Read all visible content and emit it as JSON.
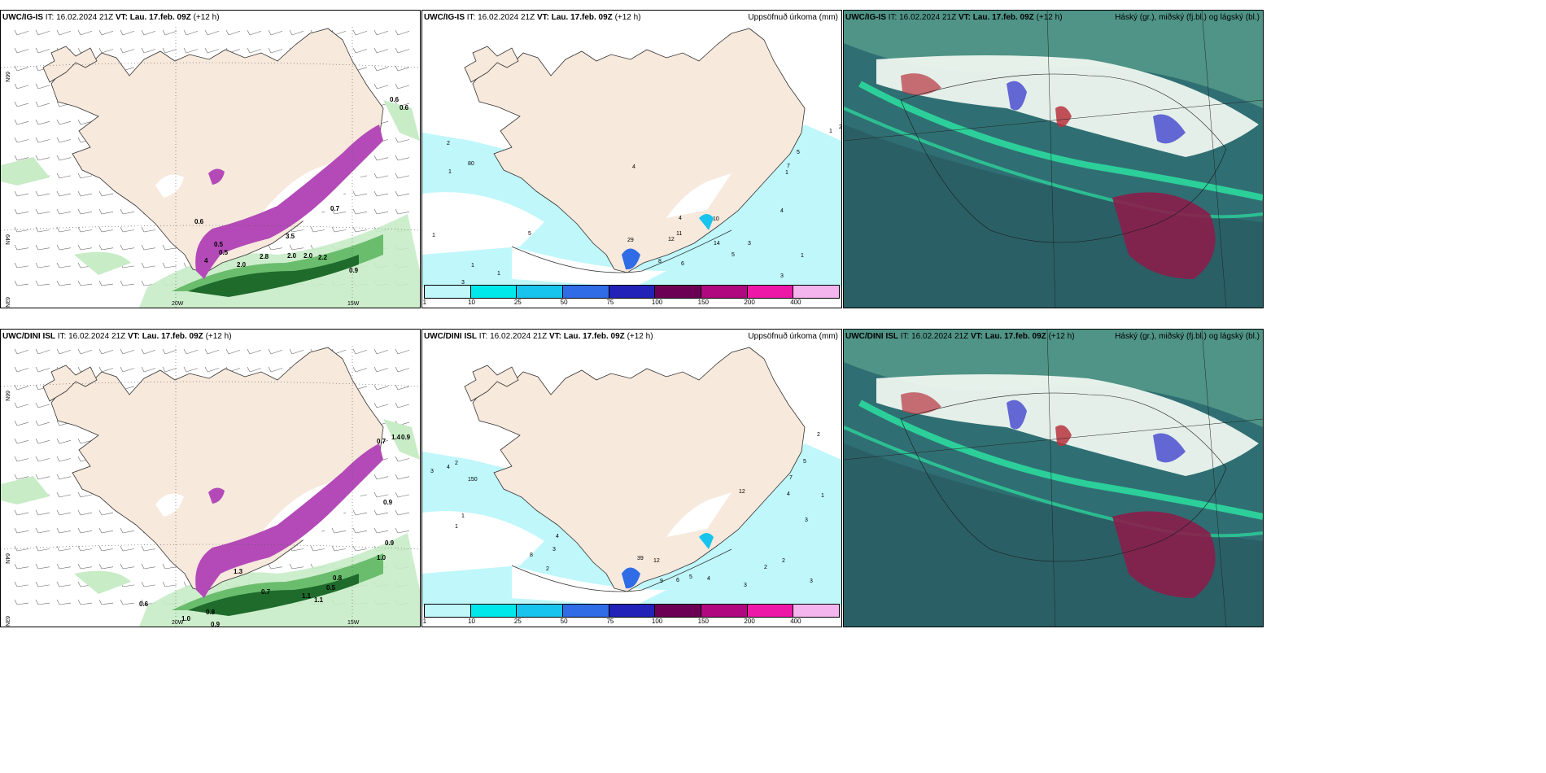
{
  "panels": [
    {
      "id": "p1",
      "type": "wind-precip",
      "model": "UWC/IG-IS",
      "it": "IT: 16.02.2024 21Z",
      "vt_label": "VT:",
      "vt": "Lau. 17.feb. 09Z",
      "lead": "(+12 h)",
      "lat_labels": [
        "66N",
        "64N",
        "63N"
      ],
      "lon_labels": [
        "20W",
        "15W"
      ],
      "precip_values": [
        "0.6",
        "0.6",
        "0.6",
        "0.7",
        "0.9",
        "2.0",
        "2.8",
        "2.0",
        "2.0",
        "2.2",
        "0.5",
        "3.5",
        "4",
        "0.5"
      ]
    },
    {
      "id": "p2",
      "type": "accum-precip",
      "model": "UWC/IG-IS",
      "it": "IT: 16.02.2024 21Z",
      "vt_label": "VT:",
      "vt": "Lau. 17.feb. 09Z",
      "lead": "(+12 h)",
      "title_right": "Uppsöfnuð úrkoma (mm)",
      "accum_values": [
        "2",
        "1",
        "80",
        "5",
        "4",
        "11",
        "12",
        "4",
        "10",
        "14",
        "8",
        "3",
        "5",
        "1",
        "3",
        "2",
        "1",
        "1",
        "1",
        "1",
        "29",
        "6",
        "1",
        "7",
        "5",
        "4",
        "3"
      ]
    },
    {
      "id": "p3",
      "type": "cloud",
      "model": "UWC/IG-IS",
      "it": "IT: 16.02.2024 21Z",
      "vt_label": "VT:",
      "vt": "Lau. 17.feb. 09Z",
      "lead": "(+12 h)",
      "title_right": "Háský (gr.), miðský (fj.bl.) og lágský (bl.)"
    },
    {
      "id": "p4",
      "type": "wind-precip",
      "model": "UWC/DINI ISL",
      "it": "IT: 16.02.2024 21Z",
      "vt_label": "VT:",
      "vt": "Lau. 17.feb. 09Z",
      "lead": "(+12 h)",
      "lat_labels": [
        "66N",
        "64N",
        "63N"
      ],
      "lon_labels": [
        "20W",
        "15W"
      ],
      "precip_values": [
        "1.4",
        "0.9",
        "0.7",
        "0.9",
        "0.9",
        "1.0",
        "0.8",
        "0.5",
        "1.1",
        "0.7",
        "0.6",
        "1.0",
        "0.9",
        "0.8",
        "1.3",
        "1.1"
      ]
    },
    {
      "id": "p5",
      "type": "accum-precip",
      "model": "UWC/DINI ISL",
      "it": "IT: 16.02.2024 21Z",
      "vt_label": "VT:",
      "vt": "Lau. 17.feb. 09Z",
      "lead": "(+12 h)",
      "title_right": "Uppsöfnuð úrkoma (mm)",
      "accum_values": [
        "3",
        "4",
        "2",
        "150",
        "1",
        "1",
        "8",
        "4",
        "3",
        "2",
        "12",
        "7",
        "5",
        "4",
        "3",
        "1",
        "2",
        "39",
        "12",
        "9",
        "6",
        "5",
        "4",
        "3",
        "2",
        "2",
        "3"
      ]
    },
    {
      "id": "p6",
      "type": "cloud",
      "model": "UWC/DINI ISL",
      "it": "IT: 16.02.2024 21Z",
      "vt_label": "VT:",
      "vt": "Lau. 17.feb. 09Z",
      "lead": "(+12 h)",
      "title_right": "Háský (gr.), miðský (fj.bl.) og lágský (bl.)"
    }
  ],
  "legend": {
    "ticks": [
      "1",
      "10",
      "25",
      "50",
      "75",
      "100",
      "150",
      "200",
      "400"
    ],
    "colors": [
      "#bff7fb",
      "#00e8ea",
      "#16c4ee",
      "#2f6ce6",
      "#2222b8",
      "#6b0054",
      "#b0087e",
      "#ee18a8",
      "#f4b4ee"
    ]
  },
  "colors": {
    "land": "#f7e9dc",
    "sea": "#ffffff",
    "precip_light": "#c8ecc6",
    "precip_mid": "#6bbd6e",
    "precip_dark": "#1f6b2c",
    "snow": "#b44ab8",
    "accum_light": "#bff7fb",
    "cloud_low": "#2b7a7a",
    "cloud_mid": "#5b9c8c",
    "cloud_high": "#2ce0a0"
  }
}
